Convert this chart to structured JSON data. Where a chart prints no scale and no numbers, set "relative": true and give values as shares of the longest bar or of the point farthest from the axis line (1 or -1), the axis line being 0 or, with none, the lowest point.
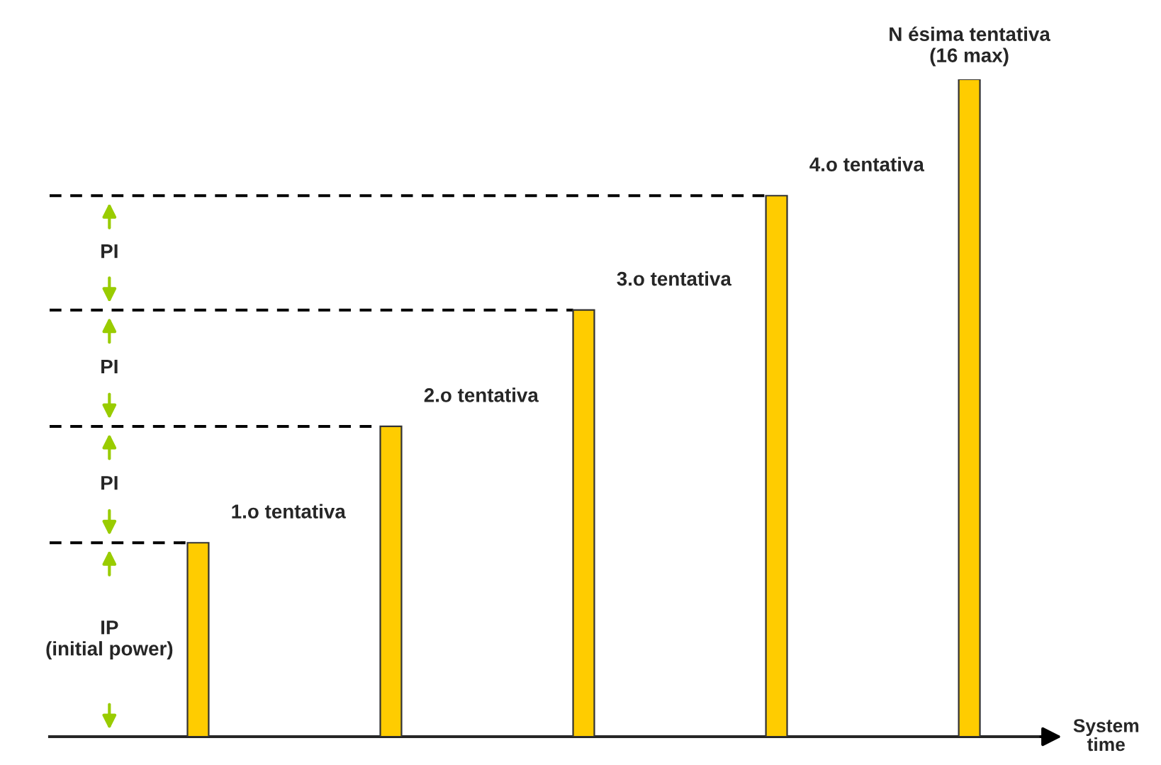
{
  "chart_data": {
    "type": "bar",
    "relative": true,
    "xlabel": "System time",
    "categories": [
      null,
      null,
      null,
      null,
      null
    ],
    "values": [
      0.295,
      0.472,
      0.649,
      0.823,
      1.0
    ],
    "color": "#ffcc00",
    "ref_lines": [
      {
        "axis": "y",
        "value": 0.295,
        "line_style": "dashed",
        "color": "#000000"
      },
      {
        "axis": "y",
        "value": 0.472,
        "line_style": "dashed",
        "color": "#000000"
      },
      {
        "axis": "y",
        "value": 0.649,
        "line_style": "dashed",
        "color": "#000000"
      },
      {
        "axis": "y",
        "value": 0.823,
        "line_style": "dashed",
        "color": "#000000"
      }
    ],
    "annotations": [
      "1.o tentativa",
      "2.o tentativa",
      "3.o tentativa",
      "4.o tentativa",
      "N ésima tentativa\n(16 max)",
      "IP\n(initial power)",
      "PI",
      "PI",
      "PI"
    ]
  }
}
